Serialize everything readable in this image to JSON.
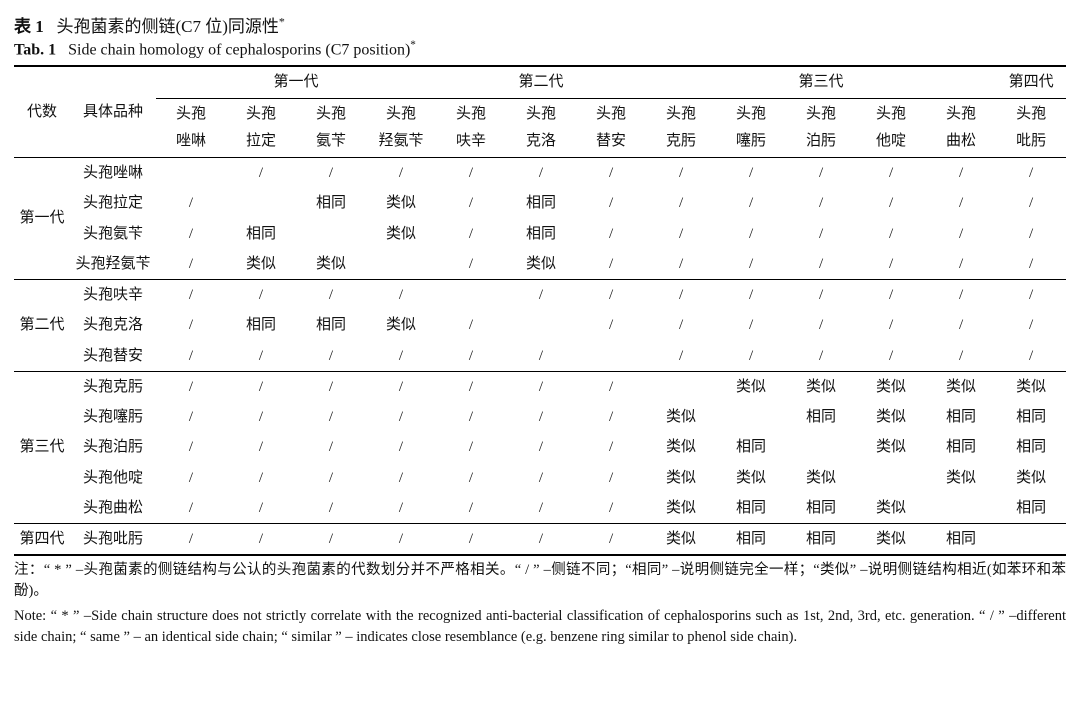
{
  "title_zh_num": "表 1",
  "title_zh_txt": "头孢菌素的侧链(C7 位)同源性",
  "title_en_num": "Tab. 1",
  "title_en_txt": "Side chain homology of cephalosporins (C7 position)",
  "asterisk": "*",
  "hdr": {
    "generation": "代数",
    "variety": "具体品种",
    "g1": "第一代",
    "g2": "第二代",
    "g3": "第三代",
    "g4": "第四代"
  },
  "cols": {
    "d1a": "头孢",
    "d1b": "唑啉",
    "d2a": "头孢",
    "d2b": "拉定",
    "d3a": "头孢",
    "d3b": "氨苄",
    "d4a": "头孢",
    "d4b": "羟氨苄",
    "d5a": "头孢",
    "d5b": "呋辛",
    "d6a": "头孢",
    "d6b": "克洛",
    "d7a": "头孢",
    "d7b": "替安",
    "d8a": "头孢",
    "d8b": "克肟",
    "d9a": "头孢",
    "d9b": "噻肟",
    "d10a": "头孢",
    "d10b": "泊肟",
    "d11a": "头孢",
    "d11b": "他啶",
    "d12a": "头孢",
    "d12b": "曲松",
    "d13a": "头孢",
    "d13b": "吡肟"
  },
  "rowGroups": [
    {
      "label": "第一代",
      "rows": [
        {
          "name": "头孢唑啉",
          "c": [
            "",
            "/",
            "/",
            "/",
            "/",
            "/",
            "/",
            "/",
            "/",
            "/",
            "/",
            "/",
            "/"
          ]
        },
        {
          "name": "头孢拉定",
          "c": [
            "/",
            "",
            "相同",
            "类似",
            "/",
            "相同",
            "/",
            "/",
            "/",
            "/",
            "/",
            "/",
            "/"
          ]
        },
        {
          "name": "头孢氨苄",
          "c": [
            "/",
            "相同",
            "",
            "类似",
            "/",
            "相同",
            "/",
            "/",
            "/",
            "/",
            "/",
            "/",
            "/"
          ]
        },
        {
          "name": "头孢羟氨苄",
          "c": [
            "/",
            "类似",
            "类似",
            "",
            "/",
            "类似",
            "/",
            "/",
            "/",
            "/",
            "/",
            "/",
            "/"
          ]
        }
      ]
    },
    {
      "label": "第二代",
      "rows": [
        {
          "name": "头孢呋辛",
          "c": [
            "/",
            "/",
            "/",
            "/",
            "",
            "/",
            "/",
            "/",
            "/",
            "/",
            "/",
            "/",
            "/"
          ]
        },
        {
          "name": "头孢克洛",
          "c": [
            "/",
            "相同",
            "相同",
            "类似",
            "/",
            "",
            "/",
            "/",
            "/",
            "/",
            "/",
            "/",
            "/"
          ]
        },
        {
          "name": "头孢替安",
          "c": [
            "/",
            "/",
            "/",
            "/",
            "/",
            "/",
            "",
            "/",
            "/",
            "/",
            "/",
            "/",
            "/"
          ]
        }
      ]
    },
    {
      "label": "第三代",
      "rows": [
        {
          "name": "头孢克肟",
          "c": [
            "/",
            "/",
            "/",
            "/",
            "/",
            "/",
            "/",
            "",
            "类似",
            "类似",
            "类似",
            "类似",
            "类似"
          ]
        },
        {
          "name": "头孢噻肟",
          "c": [
            "/",
            "/",
            "/",
            "/",
            "/",
            "/",
            "/",
            "类似",
            "",
            "相同",
            "类似",
            "相同",
            "相同"
          ]
        },
        {
          "name": "头孢泊肟",
          "c": [
            "/",
            "/",
            "/",
            "/",
            "/",
            "/",
            "/",
            "类似",
            "相同",
            "",
            "类似",
            "相同",
            "相同"
          ]
        },
        {
          "name": "头孢他啶",
          "c": [
            "/",
            "/",
            "/",
            "/",
            "/",
            "/",
            "/",
            "类似",
            "类似",
            "类似",
            "",
            "类似",
            "类似"
          ]
        },
        {
          "name": "头孢曲松",
          "c": [
            "/",
            "/",
            "/",
            "/",
            "/",
            "/",
            "/",
            "类似",
            "相同",
            "相同",
            "类似",
            "",
            "相同"
          ]
        }
      ]
    },
    {
      "label": "第四代",
      "rows": [
        {
          "name": "头孢吡肟",
          "c": [
            "/",
            "/",
            "/",
            "/",
            "/",
            "/",
            "/",
            "类似",
            "相同",
            "相同",
            "类似",
            "相同",
            ""
          ]
        }
      ]
    }
  ],
  "footnote_zh": "注：“ * ” –头孢菌素的侧链结构与公认的头孢菌素的代数划分并不严格相关。“ / ” –侧链不同；“相同” –说明侧链完全一样；“类似” –说明侧链结构相近(如苯环和苯酚)。",
  "footnote_en": "Note: “ * ” –Side chain structure does not strictly correlate with the recognized anti-bacterial classification of cephalosporins such as 1st, 2nd, 3rd, etc. generation. “ / ” –different side chain; “ same ” – an identical side chain; “ similar ” – indicates close resemblance (e.g. benzene ring similar to phenol side chain)."
}
